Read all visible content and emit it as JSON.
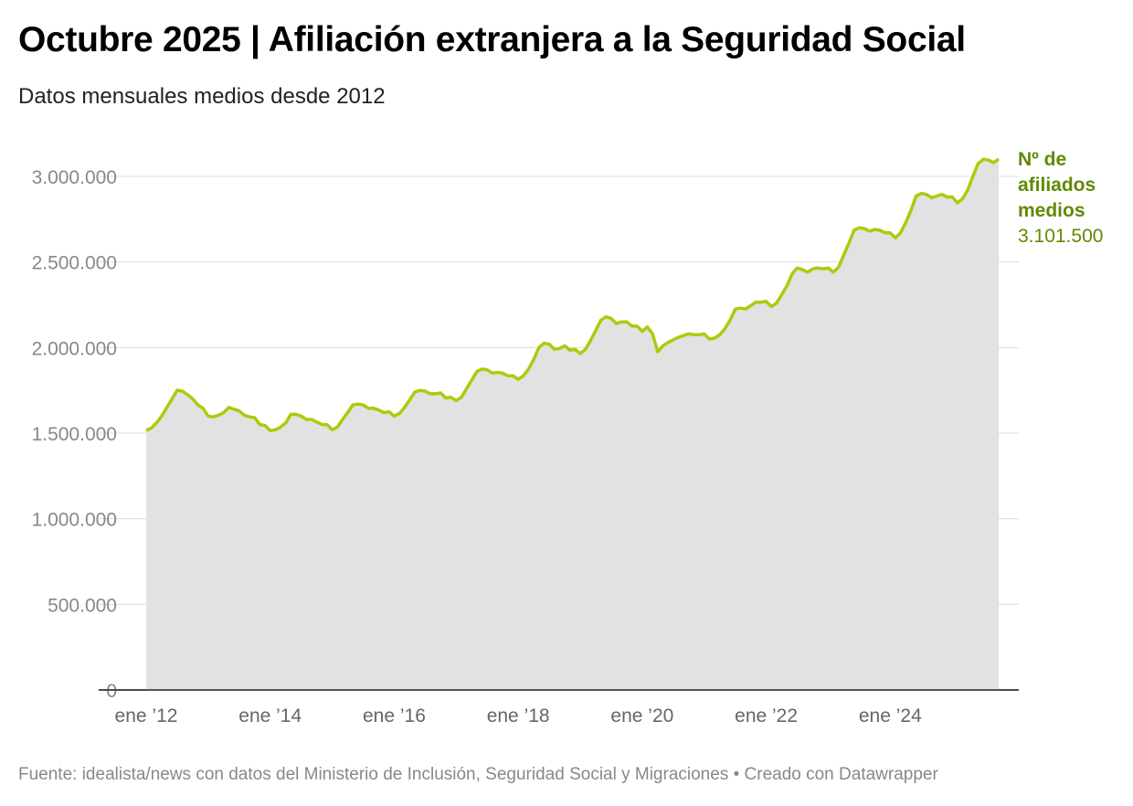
{
  "title": "Octubre 2025 | Afiliación extranjera a la Seguridad Social",
  "subtitle": "Datos mensuales medios desde 2012",
  "footer": "Fuente: idealista/news con datos del Ministerio de Inclusión, Seguridad Social y Migraciones • Creado con Datawrapper",
  "colors": {
    "line": "#a9cc0c",
    "area": "#e2e2e2",
    "label": "#5f8a00"
  },
  "chart_data": {
    "type": "area",
    "title": "Octubre 2025 | Afiliación extranjera a la Seguridad Social",
    "start": "2012-01",
    "end": "2025-10",
    "frequency": "monthly",
    "series": [
      {
        "name": "Nº de afiliados medios",
        "values": [
          1516000,
          1530000,
          1560000,
          1600000,
          1650000,
          1700000,
          1751000,
          1745000,
          1725000,
          1700000,
          1665000,
          1645000,
          1600000,
          1595000,
          1605000,
          1620000,
          1650000,
          1640000,
          1630000,
          1605000,
          1595000,
          1590000,
          1550000,
          1545000,
          1515000,
          1520000,
          1535000,
          1560000,
          1610000,
          1610000,
          1600000,
          1580000,
          1580000,
          1565000,
          1550000,
          1550000,
          1520000,
          1535000,
          1580000,
          1620000,
          1665000,
          1670000,
          1665000,
          1645000,
          1645000,
          1635000,
          1620000,
          1625000,
          1600000,
          1615000,
          1650000,
          1695000,
          1740000,
          1750000,
          1745000,
          1730000,
          1730000,
          1735000,
          1705000,
          1710000,
          1690000,
          1710000,
          1760000,
          1810000,
          1860000,
          1875000,
          1870000,
          1850000,
          1855000,
          1850000,
          1835000,
          1835000,
          1815000,
          1835000,
          1875000,
          1930000,
          2000000,
          2025000,
          2020000,
          1990000,
          1995000,
          2010000,
          1985000,
          1990000,
          1965000,
          1990000,
          2040000,
          2100000,
          2160000,
          2180000,
          2170000,
          2140000,
          2150000,
          2150000,
          2125000,
          2125000,
          2095000,
          2120000,
          2080000,
          1975000,
          2010000,
          2030000,
          2045000,
          2060000,
          2070000,
          2080000,
          2075000,
          2075000,
          2080000,
          2050000,
          2055000,
          2075000,
          2110000,
          2160000,
          2225000,
          2230000,
          2225000,
          2245000,
          2265000,
          2265000,
          2270000,
          2240000,
          2260000,
          2310000,
          2360000,
          2430000,
          2465000,
          2455000,
          2440000,
          2460000,
          2465000,
          2460000,
          2465000,
          2440000,
          2470000,
          2540000,
          2610000,
          2685000,
          2700000,
          2695000,
          2680000,
          2690000,
          2685000,
          2670000,
          2670000,
          2640000,
          2670000,
          2730000,
          2800000,
          2885000,
          2900000,
          2895000,
          2875000,
          2885000,
          2895000,
          2880000,
          2880000,
          2845000,
          2870000,
          2920000,
          3000000,
          3075000,
          3100000,
          3095000,
          3080000,
          3101500
        ]
      }
    ],
    "ylim": [
      0,
      3000000
    ],
    "yticks": [
      0,
      500000,
      1000000,
      1500000,
      2000000,
      2500000,
      3000000
    ],
    "ytick_labels": [
      "0",
      "500.000",
      "1.000.000",
      "1.500.000",
      "2.000.000",
      "2.500.000",
      "3.000.000"
    ],
    "xtick_months": [
      0,
      24,
      48,
      72,
      96,
      120,
      144
    ],
    "xtick_labels": [
      "ene ’12",
      "ene ’14",
      "ene ’16",
      "ene ’18",
      "ene ’20",
      "ene ’22",
      "ene ’24"
    ],
    "grid": true,
    "end_label": {
      "name_lines": [
        "Nº de",
        "afiliados",
        "medios"
      ],
      "value": "3.101.500"
    }
  }
}
